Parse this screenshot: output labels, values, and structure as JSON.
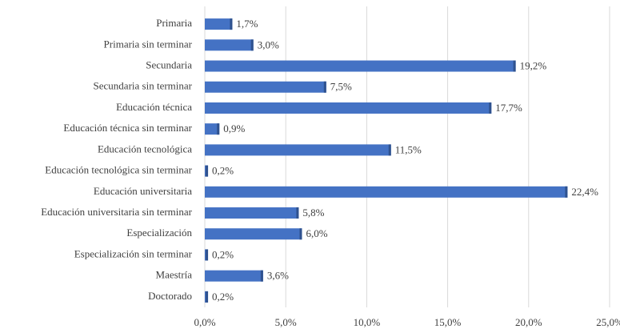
{
  "chart_data": {
    "type": "bar",
    "orientation": "horizontal",
    "categories": [
      "Primaria",
      "Primaria sin terminar",
      "Secundaria",
      "Secundaria sin terminar",
      "Educación técnica",
      "Educación técnica sin terminar",
      "Educación tecnológica",
      "Educación tecnológica sin terminar",
      "Educación universitaria",
      "Educación universitaria sin terminar",
      "Especialización",
      "Especialización sin terminar",
      "Maestría",
      "Doctorado"
    ],
    "values": [
      1.7,
      3.0,
      19.2,
      7.5,
      17.7,
      0.9,
      11.5,
      0.2,
      22.4,
      5.8,
      6.0,
      0.2,
      3.6,
      0.2
    ],
    "value_labels": [
      "1,7%",
      "3,0%",
      "19,2%",
      "7,5%",
      "17,7%",
      "0,9%",
      "11,5%",
      "0,2%",
      "22,4%",
      "5,8%",
      "6,0%",
      "0,2%",
      "3,6%",
      "0,2%"
    ],
    "color": "#4472c4",
    "xlim": [
      0,
      25
    ],
    "xticks": [
      {
        "value": 0,
        "label": "0,0%"
      },
      {
        "value": 5,
        "label": "5,0%"
      },
      {
        "value": 10,
        "label": "10,0%"
      },
      {
        "value": 15,
        "label": "15,0%"
      },
      {
        "value": 20,
        "label": "20,0%"
      },
      {
        "value": 25,
        "label": "25,0%"
      }
    ],
    "grid": true
  }
}
